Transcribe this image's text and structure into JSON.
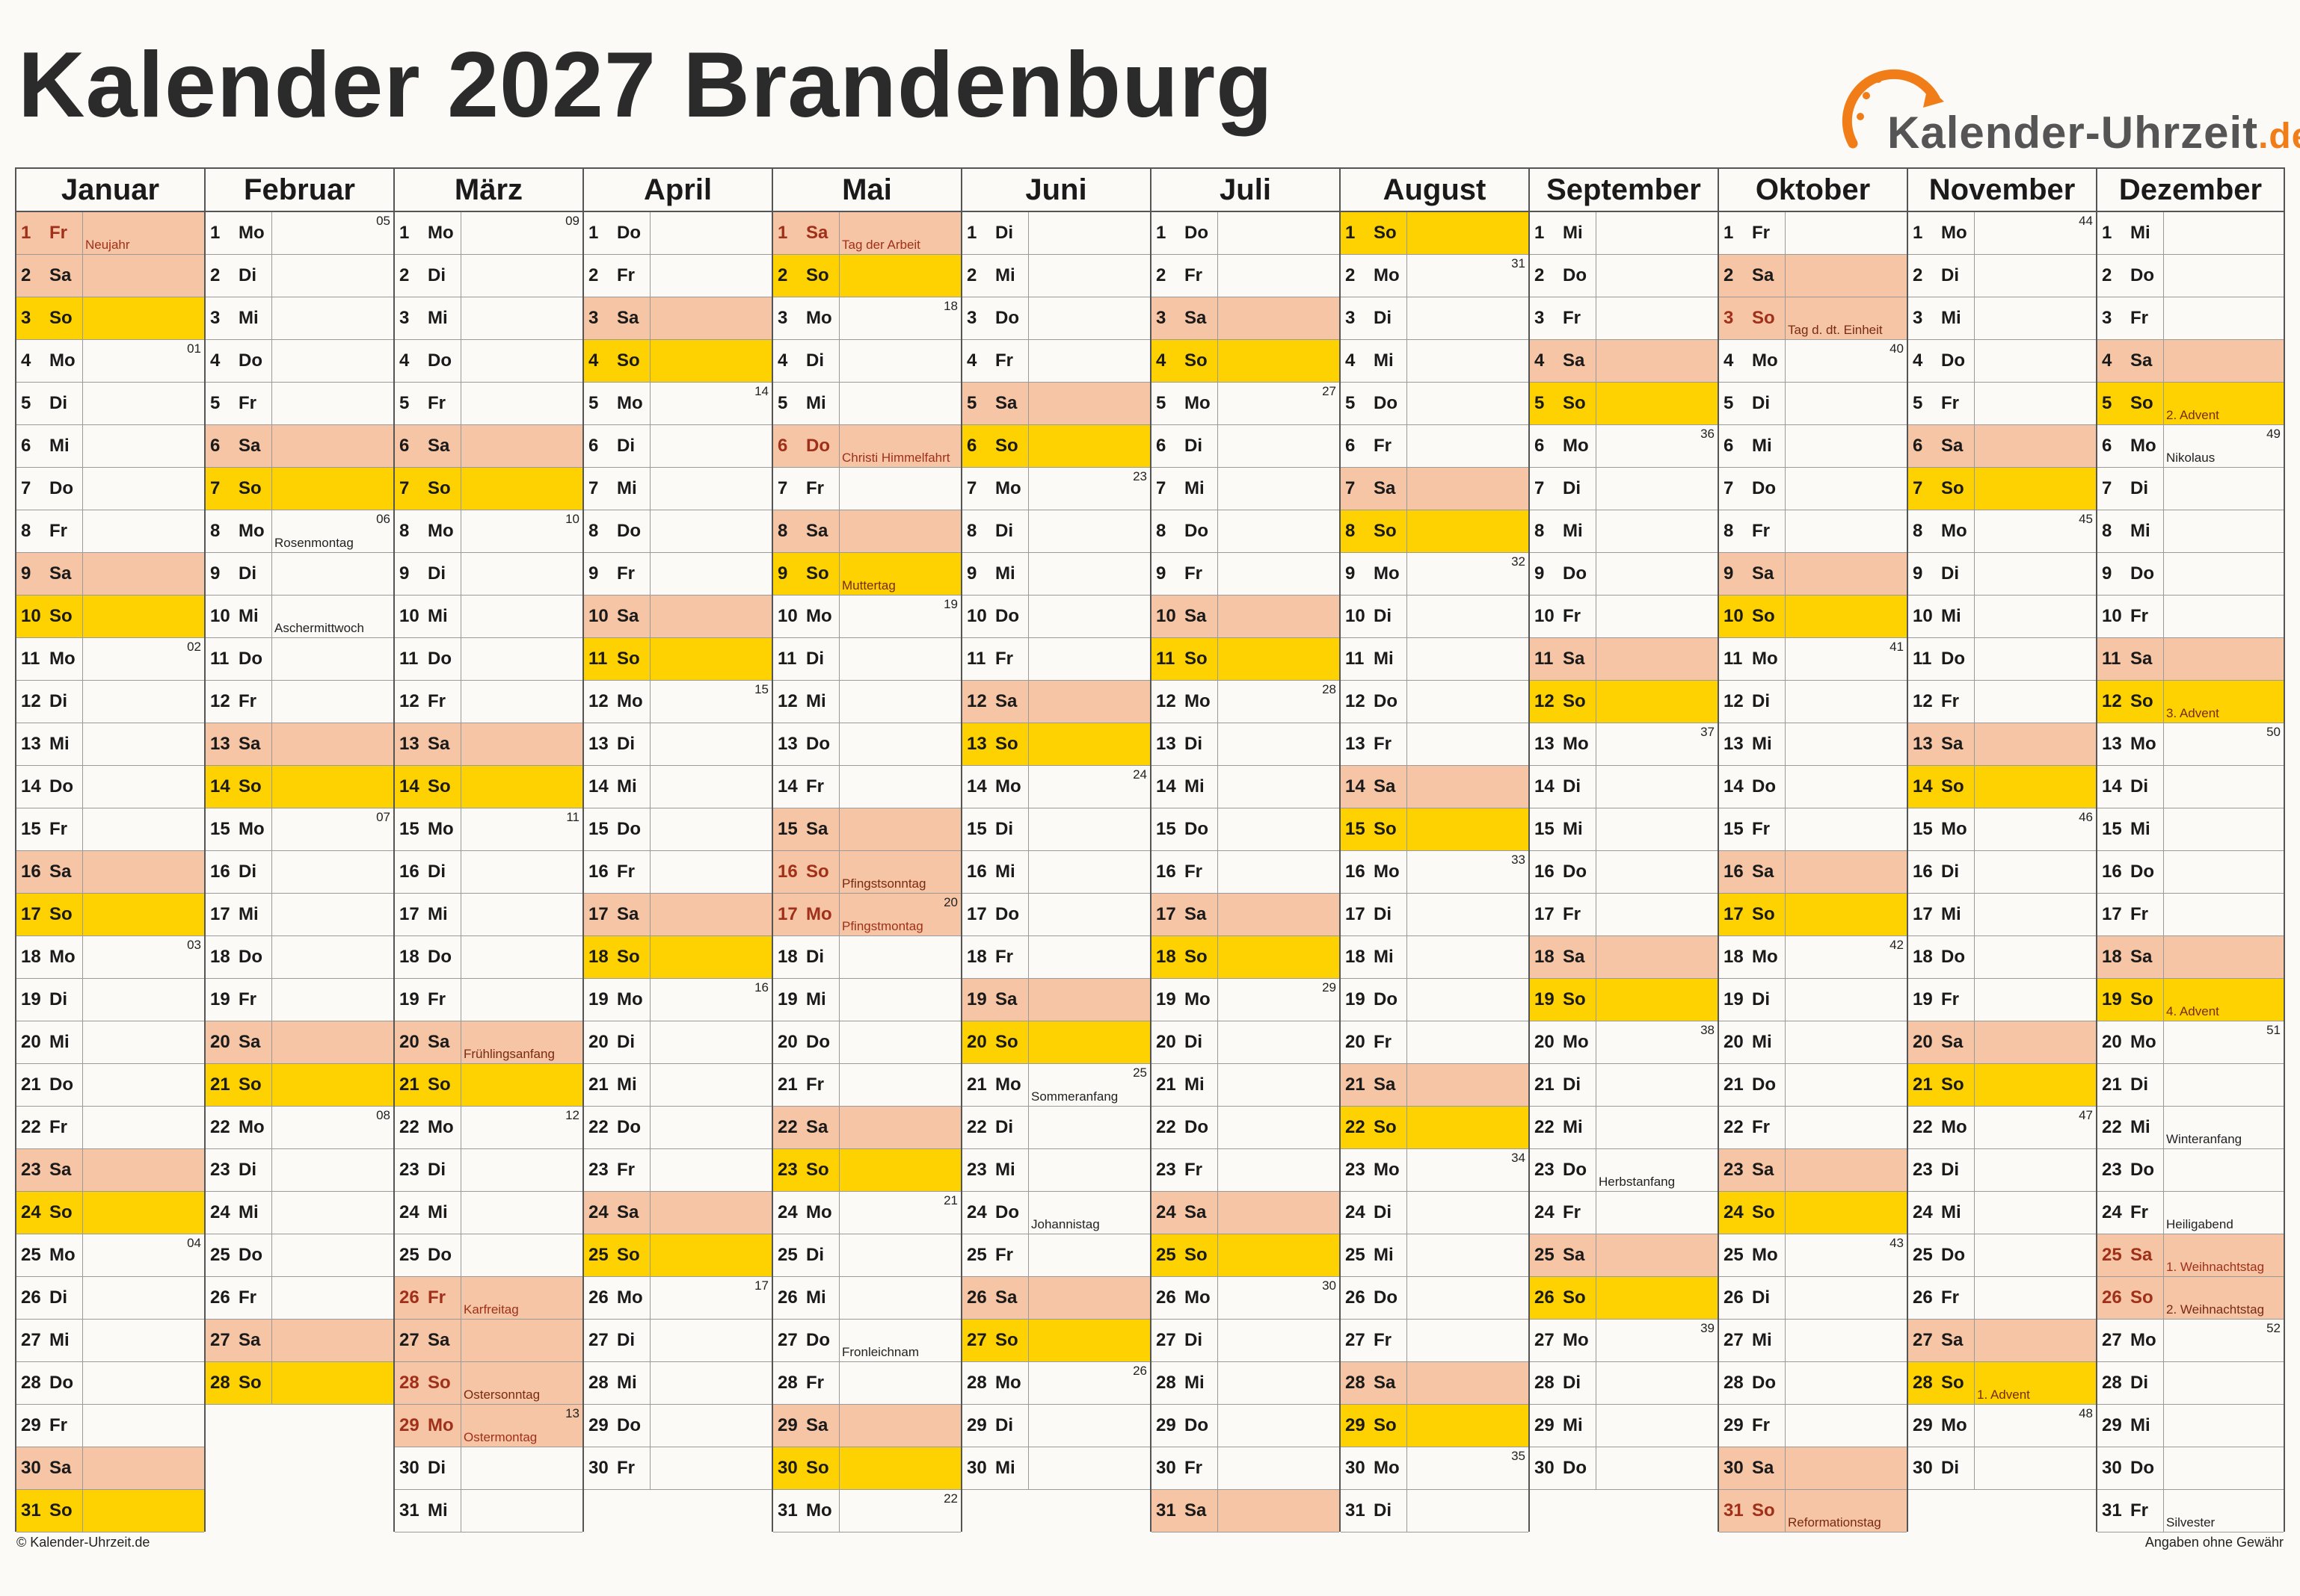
{
  "title": "Kalender 2027 Brandenburg",
  "logo": {
    "name": "Kalender-Uhrzeit",
    "tld": ".de"
  },
  "footer": {
    "left": "© Kalender-Uhrzeit.de",
    "right": "Angaben ohne Gewähr"
  },
  "colors": {
    "saturday": "#f5c5a5",
    "sunday": "#fdd200",
    "holiday_text": "#a0301a",
    "grid": "#555555"
  },
  "weekday_names": [
    "Mo",
    "Di",
    "Mi",
    "Do",
    "Fr",
    "Sa",
    "So"
  ],
  "months": [
    {
      "name": "Januar",
      "days": 31,
      "first_weekday": 4
    },
    {
      "name": "Februar",
      "days": 28,
      "first_weekday": 0
    },
    {
      "name": "März",
      "days": 31,
      "first_weekday": 0
    },
    {
      "name": "April",
      "days": 30,
      "first_weekday": 3
    },
    {
      "name": "Mai",
      "days": 31,
      "first_weekday": 5
    },
    {
      "name": "Juni",
      "days": 30,
      "first_weekday": 1
    },
    {
      "name": "Juli",
      "days": 31,
      "first_weekday": 3
    },
    {
      "name": "August",
      "days": 31,
      "first_weekday": 6
    },
    {
      "name": "September",
      "days": 30,
      "first_weekday": 2
    },
    {
      "name": "Oktober",
      "days": 31,
      "first_weekday": 4
    },
    {
      "name": "November",
      "days": 30,
      "first_weekday": 0
    },
    {
      "name": "Dezember",
      "days": 31,
      "first_weekday": 2
    }
  ],
  "holidays": {
    "0-1": {
      "label": "Neujahr",
      "official": true
    },
    "2-26": {
      "label": "Karfreitag",
      "official": true
    },
    "2-28": {
      "label": "Ostersonntag",
      "official": true
    },
    "2-29": {
      "label": "Ostermontag",
      "official": true
    },
    "4-1": {
      "label": "Tag der Arbeit",
      "official": true
    },
    "4-6": {
      "label": "Christi Himmelfahrt",
      "official": true
    },
    "4-16": {
      "label": "Pfingstsonntag",
      "official": true
    },
    "4-17": {
      "label": "Pfingstmontag",
      "official": true
    },
    "9-3": {
      "label": "Tag d. dt. Einheit",
      "official": true
    },
    "9-31": {
      "label": "Reformationstag",
      "official": true
    },
    "11-25": {
      "label": "1. Weihnachtstag",
      "official": true
    },
    "11-26": {
      "label": "2. Weihnachtstag",
      "official": true
    }
  },
  "notes": {
    "1-8": "Rosenmontag",
    "1-10": "Aschermittwoch",
    "2-20": "Frühlingsanfang",
    "4-9": "Muttertag",
    "4-27": "Fronleichnam",
    "5-21": "Sommeranfang",
    "5-24": "Johannistag",
    "8-23": "Herbstanfang",
    "10-28": "1. Advent",
    "11-5": "2. Advent",
    "11-6": "Nikolaus",
    "11-12": "3. Advent",
    "11-19": "4. Advent",
    "11-22": "Winteranfang",
    "11-24": "Heiligabend",
    "11-31": "Silvester"
  }
}
